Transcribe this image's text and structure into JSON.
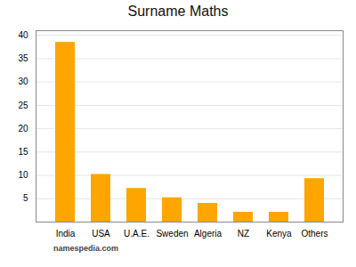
{
  "chart_data": {
    "type": "bar",
    "title": "Surname Maths",
    "categories": [
      "India",
      "USA",
      "U.A.E.",
      "Sweden",
      "Algeria",
      "NZ",
      "Kenya",
      "Others"
    ],
    "values": [
      38.5,
      10.2,
      7.2,
      5.2,
      4.0,
      2.1,
      2.1,
      9.3
    ],
    "color": "#FFA500",
    "ylim": [
      0,
      41
    ],
    "yticks": [
      {
        "value": 0,
        "label": ""
      },
      5,
      10,
      15,
      20,
      25,
      30,
      35,
      40
    ],
    "grid": true,
    "annotations": [
      "namespedia.com"
    ]
  }
}
